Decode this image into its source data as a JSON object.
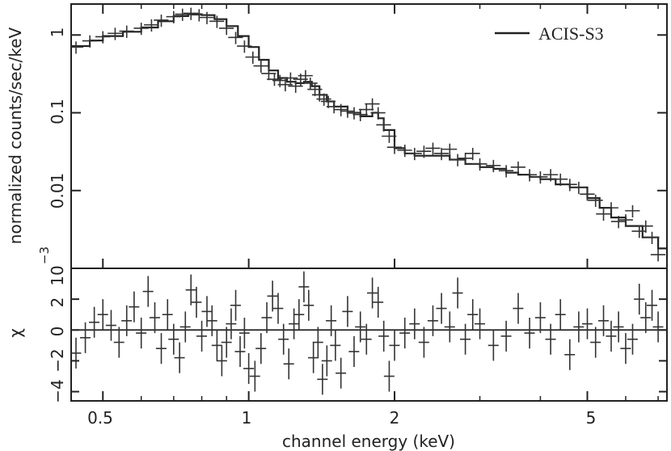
{
  "chart_data": [
    {
      "type": "scatter",
      "panel": "spectrum",
      "xlabel": "channel energy (keV)",
      "ylabel": "normalized counts/sec/keV",
      "x_scale": "log",
      "y_scale": "log",
      "xlim": [
        0.43,
        7.3
      ],
      "ylim": [
        0.001,
        2.5
      ],
      "y_tick_labels": [
        "1",
        "0.1",
        "0.01",
        "10"
      ],
      "y_tick_exponent": "−3",
      "grid": false,
      "legend": {
        "position": "top-right",
        "entries": [
          "ACIS-S3"
        ]
      },
      "series": [
        {
          "name": "ACIS-S3",
          "style": "step-line",
          "x": [
            0.43,
            0.47,
            0.5,
            0.55,
            0.6,
            0.65,
            0.7,
            0.75,
            0.8,
            0.85,
            0.9,
            0.95,
            1.0,
            1.05,
            1.1,
            1.15,
            1.2,
            1.25,
            1.3,
            1.35,
            1.4,
            1.45,
            1.5,
            1.6,
            1.7,
            1.8,
            1.85,
            1.9,
            2.0,
            2.1,
            2.2,
            2.4,
            2.6,
            2.8,
            3.0,
            3.2,
            3.4,
            3.6,
            3.8,
            4.0,
            4.3,
            4.6,
            5.0,
            5.3,
            5.6,
            6.0,
            6.5,
            7.0,
            7.3
          ],
          "y": [
            0.72,
            0.85,
            0.97,
            1.1,
            1.25,
            1.5,
            1.75,
            1.85,
            1.8,
            1.6,
            1.3,
            0.97,
            0.7,
            0.48,
            0.35,
            0.28,
            0.25,
            0.24,
            0.25,
            0.22,
            0.17,
            0.14,
            0.12,
            0.1,
            0.09,
            0.1,
            0.085,
            0.06,
            0.035,
            0.03,
            0.028,
            0.028,
            0.025,
            0.022,
            0.02,
            0.019,
            0.017,
            0.016,
            0.015,
            0.014,
            0.012,
            0.011,
            0.008,
            0.006,
            0.0045,
            0.0035,
            0.0025,
            0.0018,
            0.0013
          ]
        },
        {
          "name": "",
          "style": "crosses",
          "x": [
            0.44,
            0.47,
            0.5,
            0.53,
            0.56,
            0.6,
            0.63,
            0.66,
            0.7,
            0.73,
            0.76,
            0.79,
            0.82,
            0.86,
            0.9,
            0.94,
            0.98,
            1.02,
            1.06,
            1.1,
            1.13,
            1.16,
            1.19,
            1.22,
            1.25,
            1.28,
            1.31,
            1.34,
            1.37,
            1.4,
            1.43,
            1.46,
            1.5,
            1.55,
            1.6,
            1.65,
            1.7,
            1.75,
            1.8,
            1.85,
            1.9,
            1.95,
            2.0,
            2.1,
            2.2,
            2.3,
            2.4,
            2.5,
            2.6,
            2.7,
            2.8,
            2.9,
            3.0,
            3.2,
            3.4,
            3.6,
            3.8,
            4.0,
            4.2,
            4.4,
            4.6,
            4.8,
            5.0,
            5.2,
            5.4,
            5.6,
            5.8,
            6.0,
            6.2,
            6.4,
            6.6,
            6.8,
            7.0
          ],
          "y": [
            0.7,
            0.84,
            0.95,
            1.05,
            1.12,
            1.22,
            1.35,
            1.55,
            1.72,
            1.85,
            1.9,
            1.82,
            1.68,
            1.5,
            1.22,
            0.93,
            0.72,
            0.52,
            0.4,
            0.32,
            0.27,
            0.26,
            0.23,
            0.28,
            0.22,
            0.27,
            0.3,
            0.24,
            0.2,
            0.17,
            0.15,
            0.14,
            0.12,
            0.11,
            0.105,
            0.1,
            0.095,
            0.11,
            0.13,
            0.1,
            0.07,
            0.05,
            0.036,
            0.033,
            0.03,
            0.032,
            0.035,
            0.03,
            0.034,
            0.025,
            0.026,
            0.03,
            0.022,
            0.021,
            0.018,
            0.02,
            0.016,
            0.015,
            0.016,
            0.014,
            0.012,
            0.011,
            0.009,
            0.0075,
            0.005,
            0.006,
            0.004,
            0.0042,
            0.0055,
            0.003,
            0.0035,
            0.0025,
            0.0015
          ],
          "xerr": 0.035,
          "yerr": 0.18
        }
      ]
    },
    {
      "type": "scatter",
      "panel": "residuals",
      "xlabel": "channel energy (keV)",
      "ylabel": "χ",
      "x_scale": "log",
      "xlim": [
        0.43,
        7.3
      ],
      "ylim": [
        -4.6,
        4.0
      ],
      "x_tick_labels": [
        "0.5",
        "1",
        "2",
        "5"
      ],
      "y_tick_labels": [
        "−4",
        "−2",
        "0",
        "2"
      ],
      "grid": false,
      "series": [
        {
          "name": "",
          "style": "crosses",
          "reference_line": 0,
          "x": [
            0.44,
            0.46,
            0.48,
            0.5,
            0.52,
            0.54,
            0.56,
            0.58,
            0.6,
            0.62,
            0.64,
            0.66,
            0.68,
            0.7,
            0.72,
            0.74,
            0.76,
            0.78,
            0.8,
            0.82,
            0.84,
            0.86,
            0.88,
            0.9,
            0.92,
            0.94,
            0.96,
            0.98,
            1.0,
            1.03,
            1.06,
            1.09,
            1.12,
            1.15,
            1.18,
            1.21,
            1.24,
            1.27,
            1.3,
            1.33,
            1.36,
            1.39,
            1.42,
            1.45,
            1.48,
            1.51,
            1.55,
            1.6,
            1.65,
            1.7,
            1.75,
            1.8,
            1.85,
            1.9,
            1.95,
            2.0,
            2.1,
            2.2,
            2.3,
            2.4,
            2.5,
            2.6,
            2.7,
            2.8,
            2.9,
            3.0,
            3.2,
            3.4,
            3.6,
            3.8,
            4.0,
            4.2,
            4.4,
            4.6,
            4.8,
            5.0,
            5.2,
            5.4,
            5.6,
            5.8,
            6.0,
            6.2,
            6.4,
            6.6,
            6.8,
            7.0
          ],
          "y": [
            -1.5,
            -0.5,
            0.5,
            1.0,
            0.3,
            -0.8,
            0.6,
            1.5,
            -0.2,
            2.5,
            0.8,
            -1.2,
            1.0,
            -0.6,
            -1.8,
            0.2,
            2.6,
            1.8,
            -0.4,
            1.2,
            0.6,
            -1.0,
            -2.0,
            -0.8,
            0.4,
            1.6,
            -1.4,
            -0.2,
            -2.5,
            -3.0,
            -1.2,
            0.8,
            2.2,
            1.4,
            -0.6,
            -2.2,
            0.4,
            1.0,
            2.8,
            1.6,
            -1.8,
            -0.8,
            -3.2,
            -2.0,
            0.6,
            -1.0,
            -2.8,
            1.2,
            -1.4,
            0.2,
            -0.6,
            2.4,
            1.8,
            -0.4,
            -3.0,
            -1.0,
            -0.2,
            0.4,
            -0.8,
            0.6,
            1.4,
            0.2,
            2.4,
            -0.6,
            1.0,
            0.4,
            -1.0,
            -0.4,
            1.4,
            -0.2,
            0.8,
            -0.6,
            1.0,
            -1.6,
            0.2,
            0.4,
            -0.8,
            0.6,
            -0.4,
            0.2,
            -1.2,
            -0.6,
            2.0,
            0.8,
            1.6,
            0.2
          ]
        }
      ]
    }
  ]
}
